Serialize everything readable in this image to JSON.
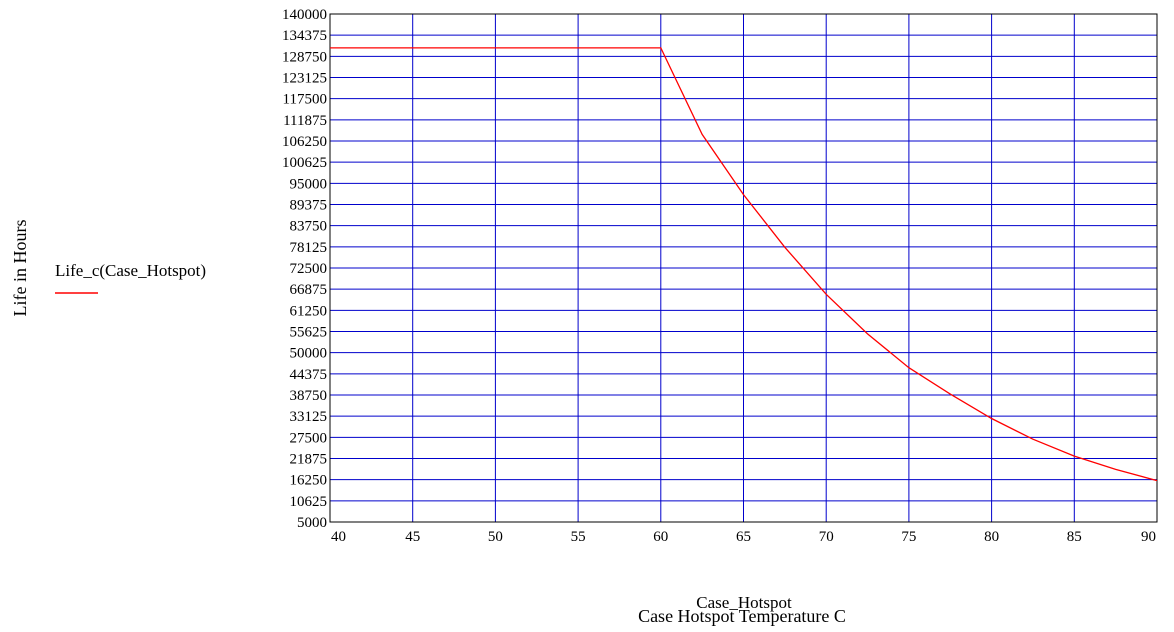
{
  "chart_data": {
    "type": "line",
    "ylabel": "Life in Hours",
    "xlabel": "Case_Hotspot",
    "x_caption": "Case Hotspot Temperature C",
    "xlim": [
      40,
      90
    ],
    "ylim": [
      5000,
      140000
    ],
    "x_ticks": [
      40,
      45,
      50,
      55,
      60,
      65,
      70,
      75,
      80,
      85,
      90
    ],
    "y_ticks": [
      140000,
      134375,
      128750,
      123125,
      117500,
      111875,
      106250,
      100625,
      95000,
      89375,
      83750,
      78125,
      72500,
      66875,
      61250,
      55625,
      50000,
      44375,
      38750,
      33125,
      27500,
      21875,
      16250,
      10625,
      5000
    ],
    "grid": true,
    "legend_position": "left",
    "series": [
      {
        "name": "Life_c(Case_Hotspot)",
        "color": "#ff0000",
        "x": [
          40,
          45,
          50,
          55,
          60,
          62.5,
          65,
          67.5,
          70,
          72.5,
          75,
          77.5,
          80,
          82.5,
          85,
          87.5,
          90
        ],
        "y": [
          131000,
          131000,
          131000,
          131000,
          131000,
          108000,
          92000,
          78000,
          65500,
          55000,
          46000,
          39000,
          32500,
          27000,
          22500,
          19000,
          16000
        ]
      }
    ],
    "colors": {
      "grid": "#0000cc",
      "frame": "#000000",
      "line": "#ff0000"
    }
  }
}
